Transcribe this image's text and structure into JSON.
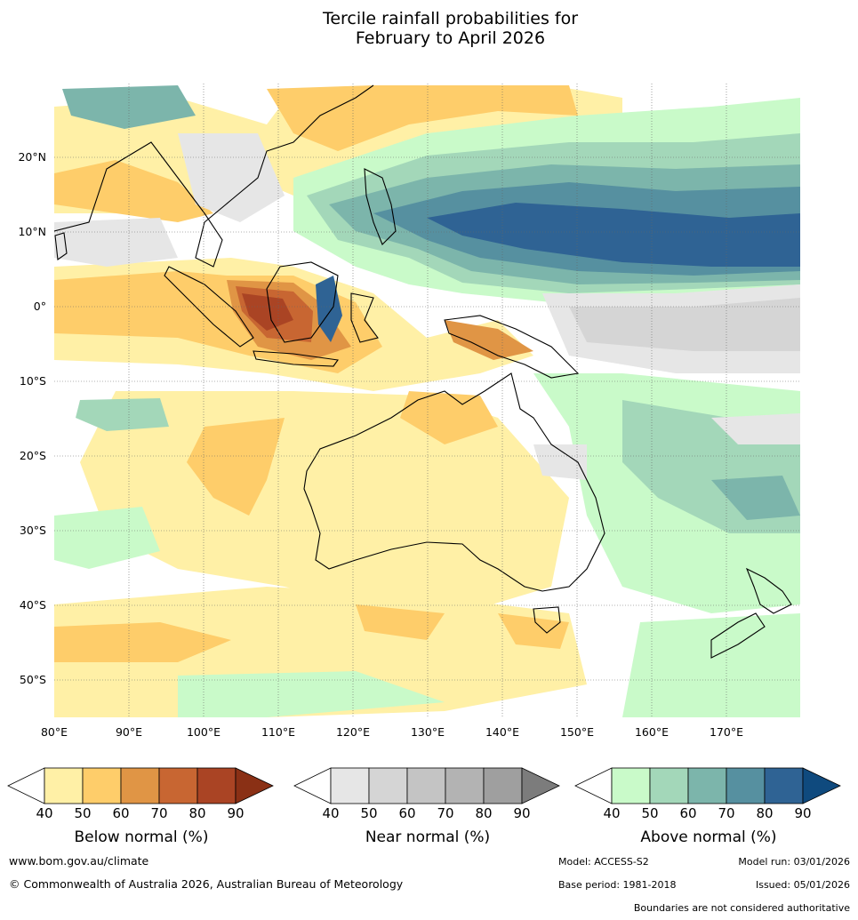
{
  "title": {
    "line1": "Tercile rainfall probabilities for",
    "line2": "February to April 2026"
  },
  "map": {
    "lat_labels": [
      "20°N",
      "10°N",
      "0°",
      "10°S",
      "20°S",
      "30°S",
      "40°S",
      "50°S"
    ],
    "lon_labels": [
      "80°E",
      "90°E",
      "100°E",
      "110°E",
      "120°E",
      "130°E",
      "140°E",
      "150°E",
      "160°E",
      "170°E"
    ],
    "lon_range_deg": [
      80,
      180
    ],
    "lat_range_deg": [
      -55,
      30
    ],
    "gridlines": true
  },
  "colorbars": [
    {
      "name": "below",
      "title": "Below normal (%)",
      "ticks": [
        "40",
        "50",
        "60",
        "70",
        "80",
        "90"
      ],
      "colors": [
        "#ffffff",
        "#fff0a6",
        "#fecd6a",
        "#e09545",
        "#c86632",
        "#aa4424",
        "#8a3015"
      ]
    },
    {
      "name": "near",
      "title": "Near normal (%)",
      "ticks": [
        "40",
        "50",
        "60",
        "70",
        "80",
        "90"
      ],
      "colors": [
        "#ffffff",
        "#e6e6e6",
        "#d5d5d5",
        "#c4c4c4",
        "#b3b3b3",
        "#9f9f9f",
        "#7c7c7c"
      ]
    },
    {
      "name": "above",
      "title": "Above normal (%)",
      "ticks": [
        "40",
        "50",
        "60",
        "70",
        "80",
        "90"
      ],
      "colors": [
        "#ffffff",
        "#c9fac9",
        "#a3d7b9",
        "#7cb5ab",
        "#5690a0",
        "#2f6394",
        "#0f4a7e"
      ]
    }
  ],
  "footer": {
    "website": "www.bom.gov.au/climate",
    "copyright": "© Commonwealth of Australia 2026, Australian Bureau of Meteorology",
    "model": "Model: ACCESS-S2",
    "model_run": "Model run: 03/01/2026",
    "base_period": "Base period: 1981-2018",
    "issued": "Issued: 05/01/2026",
    "disclaimer": "Boundaries are not considered authoritative"
  }
}
